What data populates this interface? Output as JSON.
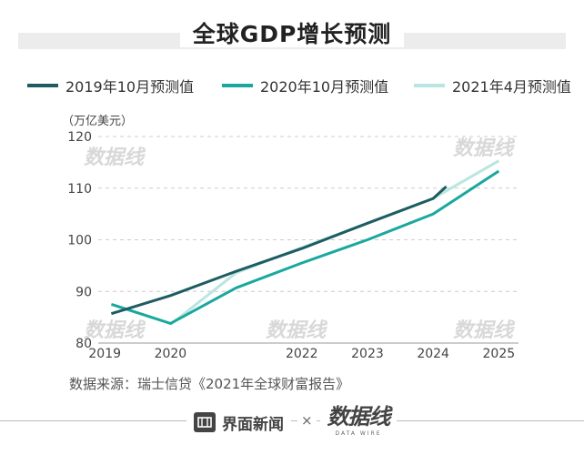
{
  "title": "全球GDP增长预测",
  "unit_label": "（万亿美元）",
  "source": "数据来源：瑞士信贷《2021年全球财富报告》",
  "footer": {
    "brand1": "界面新闻",
    "times": "×",
    "brand2": "数据线",
    "brand2_sub": "DATA WIRE"
  },
  "watermark_text": "数据线",
  "colors": {
    "series_2019": "#1d5c62",
    "series_2020": "#1aa89e",
    "series_2021": "#b9e6e0",
    "grid": "#cccccc",
    "axis": "#999999"
  },
  "chart_data": {
    "type": "line",
    "title": "全球GDP增长预测",
    "ylabel": "（万亿美元）",
    "xlabel": "",
    "x": [
      2019,
      2020,
      2021,
      2022,
      2023,
      2024,
      2025
    ],
    "x_tick_labels": [
      "2019",
      "2020",
      "2022",
      "2023",
      "2024",
      "2025"
    ],
    "x_tick_values": [
      2019,
      2020,
      2022,
      2023,
      2024,
      2025
    ],
    "y_ticks": [
      80,
      90,
      100,
      110,
      120
    ],
    "ylim": [
      80,
      120
    ],
    "xlim": [
      2018.9,
      2025.3
    ],
    "grid": true,
    "legend_position": "top",
    "series": [
      {
        "name": "2019年10月预测值",
        "color": "#1d5c62",
        "points": [
          [
            2019.1,
            85.7
          ],
          [
            2020,
            89.2
          ],
          [
            2021,
            93.9
          ],
          [
            2022,
            98.3
          ],
          [
            2023,
            103.2
          ],
          [
            2024,
            108.0
          ],
          [
            2024.2,
            110.3
          ]
        ]
      },
      {
        "name": "2020年10月预测值",
        "color": "#1aa89e",
        "points": [
          [
            2019.1,
            87.5
          ],
          [
            2020,
            83.8
          ],
          [
            2021,
            90.7
          ],
          [
            2022,
            95.5
          ],
          [
            2023,
            100.0
          ],
          [
            2024,
            105.0
          ],
          [
            2025,
            113.3
          ]
        ]
      },
      {
        "name": "2021年4月预测值",
        "color": "#b9e6e0",
        "points": [
          [
            2020,
            83.6
          ],
          [
            2021,
            93.6
          ],
          [
            2022,
            98.5
          ],
          [
            2023,
            103.2
          ],
          [
            2024,
            108.0
          ],
          [
            2025,
            115.3
          ]
        ]
      }
    ]
  }
}
